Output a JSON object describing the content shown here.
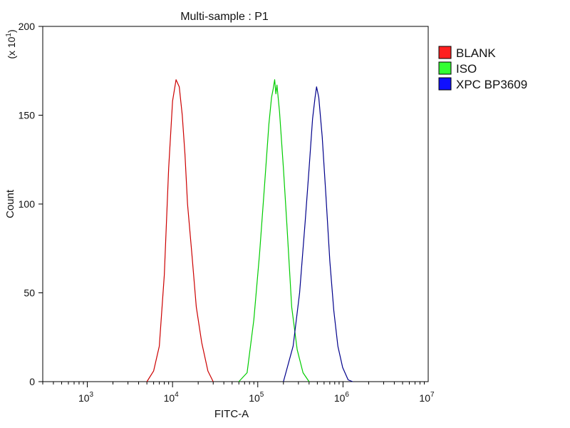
{
  "chart_data": {
    "type": "line",
    "title": "Multi-sample : P1",
    "xlabel": "FITC-A",
    "ylabel": "Count",
    "y_multiplier": {
      "prefix": "(x 10",
      "exp": "1",
      "suffix": ")"
    },
    "x_scale": "log",
    "xlim": [
      300,
      10000000
    ],
    "ylim": [
      0,
      200
    ],
    "x_ticks": [
      {
        "value": 1000,
        "base": "10",
        "exp": "3"
      },
      {
        "value": 10000,
        "base": "10",
        "exp": "4"
      },
      {
        "value": 100000,
        "base": "10",
        "exp": "5"
      },
      {
        "value": 1000000,
        "base": "10",
        "exp": "6"
      },
      {
        "value": 10000000,
        "base": "10",
        "exp": "7"
      }
    ],
    "y_ticks": [
      {
        "value": 0,
        "label": "0"
      },
      {
        "value": 50,
        "label": "50"
      },
      {
        "value": 100,
        "label": "100"
      },
      {
        "value": 150,
        "label": "150"
      },
      {
        "value": 200,
        "label": "200"
      }
    ],
    "grid": false,
    "legend_position": "right",
    "series": [
      {
        "name": "BLANK",
        "color": "#cc0000",
        "swatch": "#ff2020",
        "points": [
          [
            5000,
            0
          ],
          [
            6000,
            6
          ],
          [
            7000,
            20
          ],
          [
            8000,
            60
          ],
          [
            9000,
            120
          ],
          [
            10000,
            158
          ],
          [
            11000,
            170
          ],
          [
            12000,
            166
          ],
          [
            13000,
            150
          ],
          [
            14000,
            128
          ],
          [
            15000,
            100
          ],
          [
            17000,
            70
          ],
          [
            19000,
            42
          ],
          [
            22000,
            22
          ],
          [
            26000,
            6
          ],
          [
            30000,
            0
          ]
        ]
      },
      {
        "name": "ISO",
        "color": "#00cc00",
        "swatch": "#33ff33",
        "points": [
          [
            60000,
            0
          ],
          [
            75000,
            5
          ],
          [
            90000,
            35
          ],
          [
            105000,
            72
          ],
          [
            120000,
            110
          ],
          [
            135000,
            145
          ],
          [
            145000,
            160
          ],
          [
            152000,
            165
          ],
          [
            158000,
            170
          ],
          [
            163000,
            162
          ],
          [
            168000,
            167
          ],
          [
            180000,
            152
          ],
          [
            200000,
            120
          ],
          [
            220000,
            88
          ],
          [
            250000,
            42
          ],
          [
            290000,
            18
          ],
          [
            340000,
            5
          ],
          [
            400000,
            0
          ]
        ]
      },
      {
        "name": "XPC BP3609",
        "color": "#00008b",
        "swatch": "#1010ff",
        "points": [
          [
            200000,
            0
          ],
          [
            260000,
            20
          ],
          [
            310000,
            50
          ],
          [
            360000,
            90
          ],
          [
            400000,
            120
          ],
          [
            440000,
            148
          ],
          [
            470000,
            160
          ],
          [
            490000,
            166
          ],
          [
            520000,
            160
          ],
          [
            570000,
            138
          ],
          [
            630000,
            105
          ],
          [
            700000,
            68
          ],
          [
            780000,
            40
          ],
          [
            870000,
            20
          ],
          [
            990000,
            8
          ],
          [
            1150000,
            1
          ],
          [
            1300000,
            0
          ]
        ]
      }
    ]
  }
}
